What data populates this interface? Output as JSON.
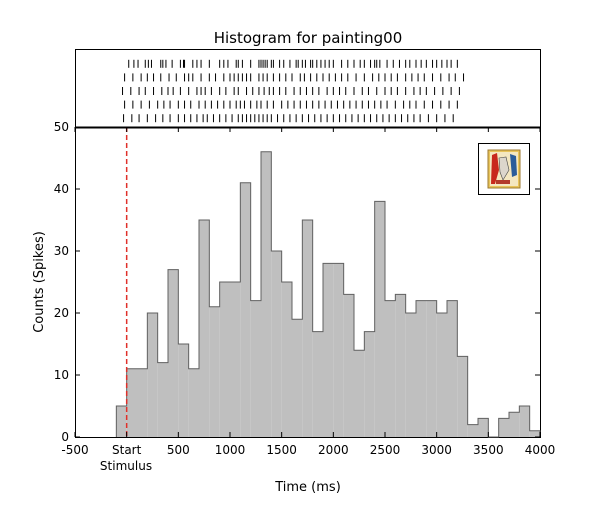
{
  "chart_data": {
    "type": "bar",
    "title": "Histogram for painting00",
    "xlabel": "Time (ms)",
    "ylabel": "Counts (Spikes)",
    "xlim": [
      -500,
      4000
    ],
    "ylim": [
      0,
      50
    ],
    "x_ticks": [
      {
        "value": -500,
        "label": "-500"
      },
      {
        "value": 0,
        "label": "Start"
      },
      {
        "value": 500,
        "label": "500"
      },
      {
        "value": 1000,
        "label": "1000"
      },
      {
        "value": 1500,
        "label": "1500"
      },
      {
        "value": 2000,
        "label": "2000"
      },
      {
        "value": 2500,
        "label": "2500"
      },
      {
        "value": 3000,
        "label": "3000"
      },
      {
        "value": 3500,
        "label": "3500"
      },
      {
        "value": 4000,
        "label": "4000"
      }
    ],
    "stimulus_label": "Stimulus",
    "y_ticks": [
      0,
      10,
      20,
      30,
      40,
      50
    ],
    "stimulus_onset_ms": 0,
    "bin_width_ms": 100,
    "bin_starts_ms": [
      -100,
      0,
      100,
      200,
      300,
      400,
      500,
      600,
      700,
      800,
      900,
      1000,
      1100,
      1200,
      1300,
      1400,
      1500,
      1600,
      1700,
      1800,
      1900,
      2000,
      2100,
      2200,
      2300,
      2400,
      2500,
      2600,
      2700,
      2800,
      2900,
      3000,
      3100,
      3200,
      3300,
      3400,
      3500,
      3600,
      3700,
      3800,
      3900
    ],
    "counts": [
      5,
      11,
      11,
      20,
      12,
      27,
      15,
      11,
      35,
      21,
      25,
      25,
      41,
      22,
      46,
      30,
      25,
      19,
      35,
      17,
      28,
      28,
      23,
      14,
      17,
      38,
      22,
      23,
      20,
      22,
      22,
      20,
      22,
      13,
      2,
      3,
      0,
      3,
      4,
      5,
      1
    ],
    "bar_color": "#bfbfbf",
    "edge_color": "#606060",
    "onset_line_color": "#e0302a",
    "raster_trials": [
      [
        20,
        70,
        110,
        180,
        210,
        240,
        330,
        350,
        380,
        440,
        520,
        550,
        560,
        640,
        680,
        720,
        800,
        900,
        940,
        980,
        1060,
        1080,
        1120,
        1200,
        1280,
        1300,
        1320,
        1340,
        1360,
        1400,
        1420,
        1480,
        1520,
        1580,
        1640,
        1660,
        1700,
        1730,
        1780,
        1800,
        1840,
        1880,
        1920,
        1960,
        2000,
        2080,
        2140,
        2200,
        2260,
        2300,
        2360,
        2400,
        2420,
        2450,
        2520,
        2580,
        2640,
        2700,
        2740,
        2800,
        2850,
        2900,
        2960,
        3000,
        3050,
        3100,
        3140,
        3200
      ],
      [
        -20,
        60,
        140,
        200,
        260,
        330,
        410,
        480,
        560,
        600,
        640,
        720,
        800,
        860,
        940,
        1000,
        1040,
        1080,
        1120,
        1160,
        1200,
        1280,
        1320,
        1360,
        1420,
        1480,
        1540,
        1600,
        1680,
        1720,
        1780,
        1840,
        1900,
        1960,
        2020,
        2080,
        2140,
        2220,
        2300,
        2380,
        2440,
        2500,
        2560,
        2620,
        2700,
        2760,
        2820,
        2880,
        2960,
        3040,
        3120,
        3180,
        3260
      ],
      [
        -40,
        40,
        120,
        180,
        260,
        340,
        400,
        450,
        520,
        600,
        680,
        720,
        760,
        820,
        900,
        960,
        1040,
        1080,
        1160,
        1220,
        1280,
        1330,
        1380,
        1420,
        1480,
        1540,
        1620,
        1680,
        1740,
        1800,
        1860,
        1940,
        2000,
        2060,
        2120,
        2200,
        2280,
        2340,
        2420,
        2500,
        2560,
        2620,
        2700,
        2780,
        2840,
        2900,
        2980,
        3060,
        3140,
        3220
      ],
      [
        -20,
        60,
        140,
        220,
        300,
        360,
        420,
        500,
        560,
        620,
        700,
        760,
        820,
        880,
        940,
        1000,
        1060,
        1100,
        1140,
        1200,
        1260,
        1300,
        1360,
        1420,
        1500,
        1560,
        1620,
        1680,
        1740,
        1800,
        1860,
        1920,
        1980,
        2040,
        2100,
        2160,
        2220,
        2280,
        2340,
        2400,
        2460,
        2520,
        2600,
        2680,
        2740,
        2800,
        2880,
        2960,
        3040,
        3120,
        3200
      ],
      [
        -30,
        50,
        120,
        200,
        280,
        350,
        420,
        500,
        560,
        620,
        680,
        740,
        780,
        840,
        900,
        960,
        1020,
        1080,
        1120,
        1160,
        1200,
        1240,
        1280,
        1320,
        1360,
        1400,
        1460,
        1520,
        1580,
        1640,
        1700,
        1760,
        1820,
        1880,
        1940,
        2000,
        2060,
        2120,
        2180,
        2240,
        2300,
        2360,
        2420,
        2480,
        2540,
        2600,
        2660,
        2720,
        2780,
        2840,
        2920,
        3000,
        3080,
        3160
      ]
    ]
  }
}
